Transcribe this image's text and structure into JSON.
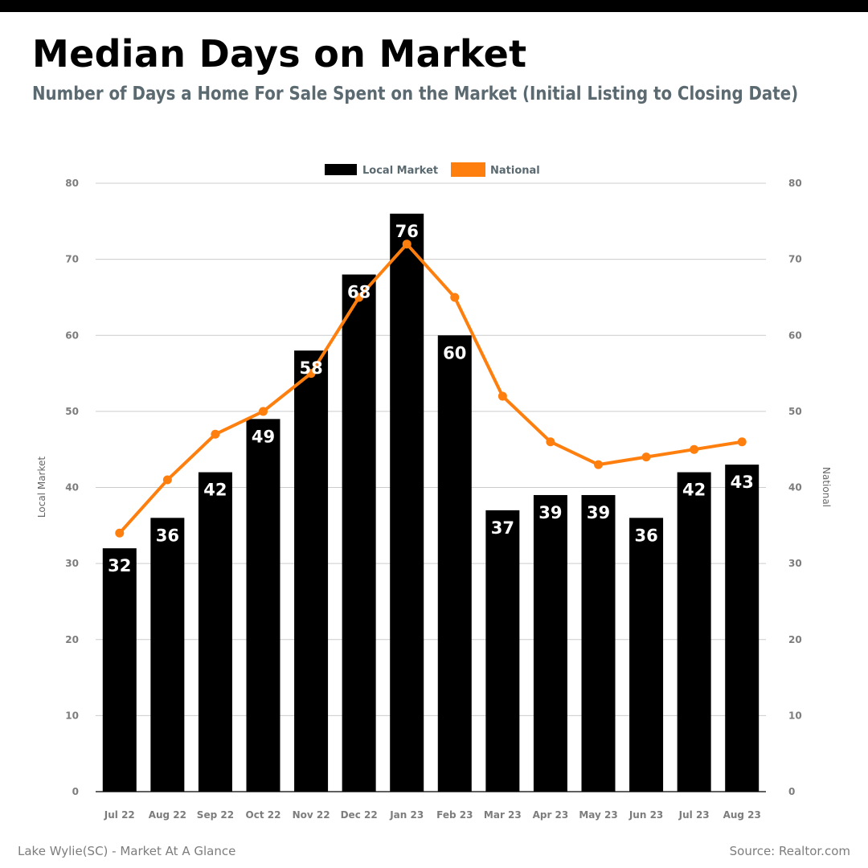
{
  "header": {
    "title": "Median Days on Market",
    "subtitle": "Number of Days a Home For Sale Spent on the Market (Initial Listing to Closing Date)"
  },
  "footer": {
    "left": "Lake Wylie(SC) - Market At A Glance",
    "right": "Source: Realtor.com"
  },
  "colors": {
    "bar": "#000000",
    "line": "#ff7f0e",
    "grid": "#cccccc",
    "tick_text": "#7d7d7d",
    "legend_text": "#5a6a70",
    "bar_label": "#ffffff"
  },
  "chart_data": {
    "type": "bar",
    "categories": [
      "Jul 22",
      "Aug 22",
      "Sep 22",
      "Oct 22",
      "Nov 22",
      "Dec 22",
      "Jan 23",
      "Feb 23",
      "Mar 23",
      "Apr 23",
      "May 23",
      "Jun 23",
      "Jul 23",
      "Aug 23"
    ],
    "series": [
      {
        "name": "Local Market",
        "type": "bar",
        "axis": "left",
        "values": [
          32,
          36,
          42,
          49,
          58,
          68,
          76,
          60,
          37,
          39,
          39,
          36,
          42,
          43
        ],
        "data_labels": true
      },
      {
        "name": "National",
        "type": "line",
        "axis": "right",
        "values": [
          34,
          41,
          47,
          50,
          55,
          65,
          72,
          65,
          52,
          46,
          43,
          44,
          45,
          46
        ],
        "data_labels": false
      }
    ],
    "ylabel": "Local Market",
    "y2label": "National",
    "ylim": [
      0,
      80
    ],
    "y2lim": [
      0,
      80
    ],
    "yticks": [
      0,
      10,
      20,
      30,
      40,
      50,
      60,
      70,
      80
    ],
    "grid": true,
    "legend": "top-center"
  }
}
